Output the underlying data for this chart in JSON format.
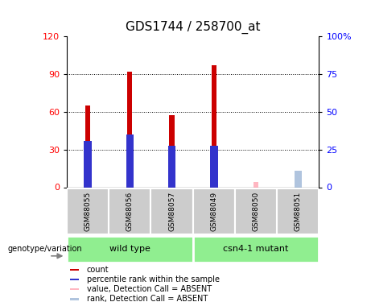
{
  "title": "GDS1744 / 258700_at",
  "categories": [
    "GSM88055",
    "GSM88056",
    "GSM88057",
    "GSM88049",
    "GSM88050",
    "GSM88051"
  ],
  "count_values": [
    65,
    92,
    57,
    97,
    0,
    0
  ],
  "rank_values": [
    37,
    42,
    33,
    33,
    0,
    0
  ],
  "absent_count_values": [
    0,
    0,
    0,
    0,
    4,
    12
  ],
  "absent_rank_values": [
    0,
    0,
    0,
    0,
    0,
    13
  ],
  "ylim": [
    0,
    120
  ],
  "yticks_left": [
    0,
    30,
    60,
    90,
    120
  ],
  "yticklabels_right": [
    "0",
    "25",
    "50",
    "75",
    "100%"
  ],
  "yticks_right_pos": [
    0,
    30,
    60,
    90,
    120
  ],
  "bar_width": 0.12,
  "count_color": "#CC0000",
  "rank_color": "#3333CC",
  "absent_count_color": "#FFB6C1",
  "absent_rank_color": "#B0C4DE",
  "group1_label": "wild type",
  "group2_label": "csn4-1 mutant",
  "group1_indices": [
    0,
    1,
    2
  ],
  "group2_indices": [
    3,
    4,
    5
  ],
  "group_bg_color": "#90EE90",
  "sample_bg_color": "#CCCCCC",
  "genotype_label": "genotype/variation",
  "legend_items": [
    "count",
    "percentile rank within the sample",
    "value, Detection Call = ABSENT",
    "rank, Detection Call = ABSENT"
  ],
  "legend_colors": [
    "#CC0000",
    "#3333CC",
    "#FFB6C1",
    "#B0C4DE"
  ],
  "title_fontsize": 11,
  "tick_fontsize": 8
}
